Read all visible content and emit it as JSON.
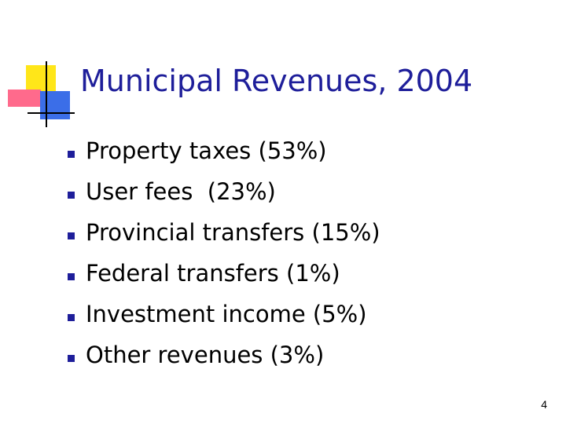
{
  "slide": {
    "title": "Municipal Revenues, 2004",
    "bullets": [
      "Property taxes (53%)",
      "User fees  (23%)",
      "Provincial transfers (15%)",
      "Federal transfers (1%)",
      "Investment income (5%)",
      "Other revenues (3%)"
    ],
    "page_number": "4"
  },
  "colors": {
    "title": "#1e1e9a",
    "bullet_marker": "#1e1e9a",
    "logo_yellow": "#ffe619",
    "logo_pink": "#ff6a8c",
    "logo_blue": "#3b6ee8"
  }
}
